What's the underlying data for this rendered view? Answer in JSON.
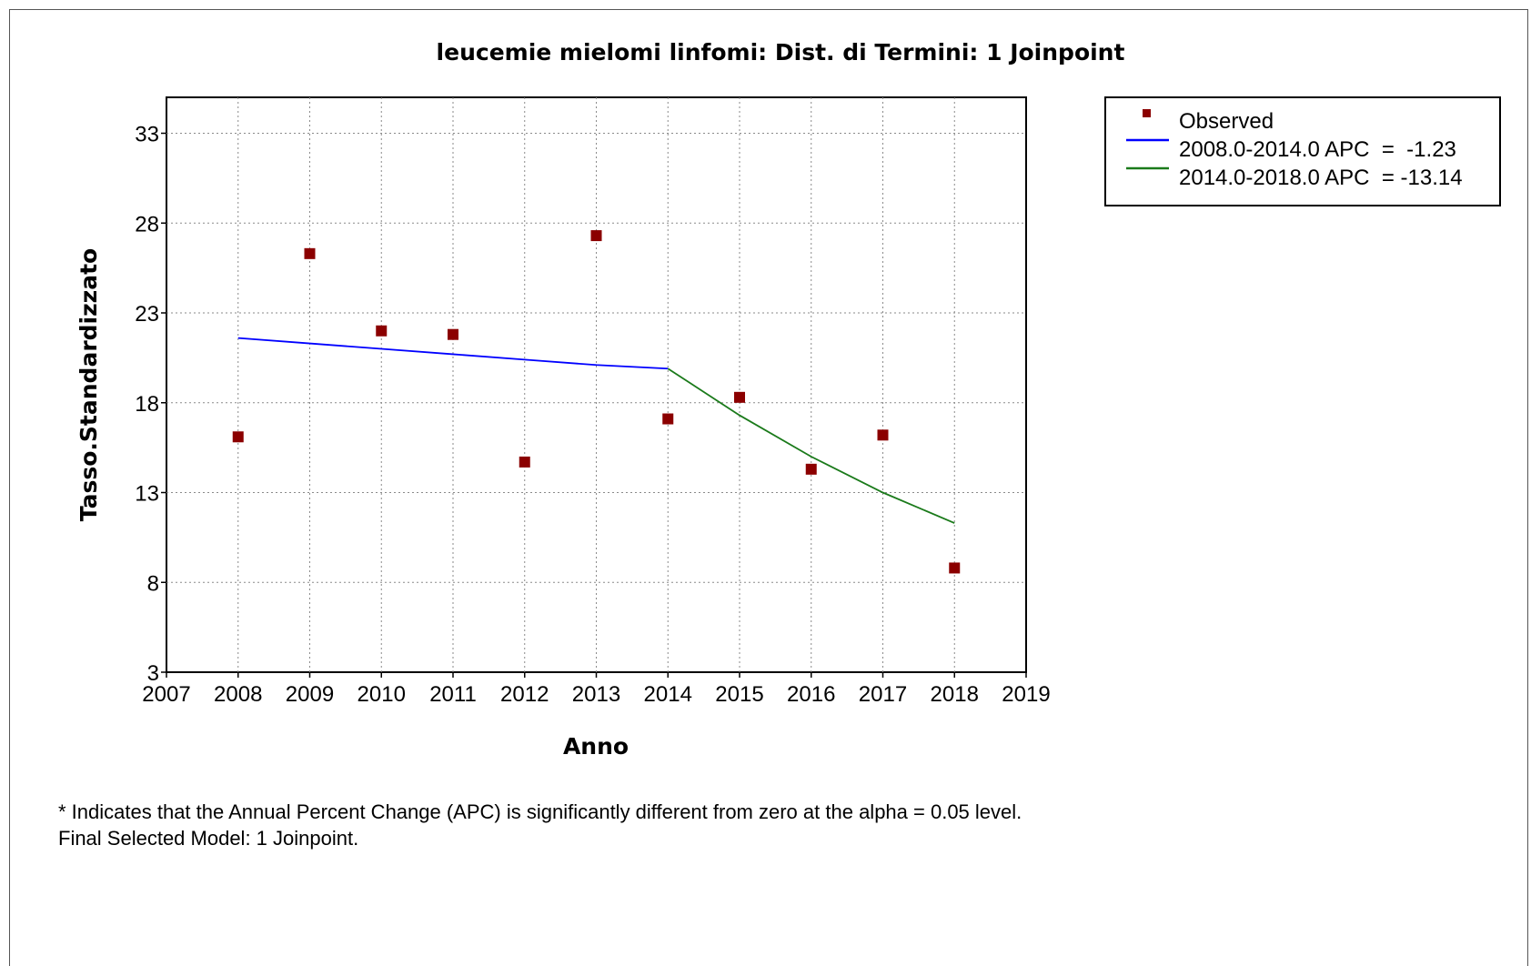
{
  "chart_data": {
    "type": "scatter",
    "title": "leucemie mielomi linfomi: Dist. di Termini: 1 Joinpoint",
    "xlabel": "Anno",
    "ylabel": "Tasso.Standardizzato",
    "xlim": [
      2007,
      2019
    ],
    "ylim": [
      3,
      35
    ],
    "x_ticks": [
      2007,
      2008,
      2009,
      2010,
      2011,
      2012,
      2013,
      2014,
      2015,
      2016,
      2017,
      2018,
      2019
    ],
    "y_ticks": [
      3,
      8,
      13,
      18,
      23,
      28,
      33
    ],
    "grid": true,
    "legend_position": "top-right, outside plot",
    "observed": {
      "name": "Observed",
      "color": "#8b0000",
      "x": [
        2008,
        2009,
        2010,
        2011,
        2012,
        2013,
        2014,
        2015,
        2016,
        2017,
        2018
      ],
      "y": [
        16.1,
        26.3,
        22.0,
        21.8,
        14.7,
        27.3,
        17.1,
        18.3,
        14.3,
        16.2,
        8.8
      ]
    },
    "series": [
      {
        "name": "2008.0-2014.0 APC  =  -1.23",
        "color": "#0000ff",
        "x": [
          2008,
          2009,
          2010,
          2011,
          2012,
          2013,
          2014
        ],
        "y": [
          21.6,
          21.3,
          21.0,
          20.7,
          20.4,
          20.1,
          19.9
        ]
      },
      {
        "name": "2014.0-2018.0 APC  = -13.14",
        "color": "#1a7a1a",
        "x": [
          2014,
          2015,
          2016,
          2017,
          2018
        ],
        "y": [
          19.9,
          17.3,
          15.0,
          13.0,
          11.3
        ]
      }
    ]
  },
  "footnotes": [
    "* Indicates that the Annual Percent Change (APC) is significantly different from zero at the alpha = 0.05 level.",
    "Final Selected Model: 1 Joinpoint."
  ]
}
